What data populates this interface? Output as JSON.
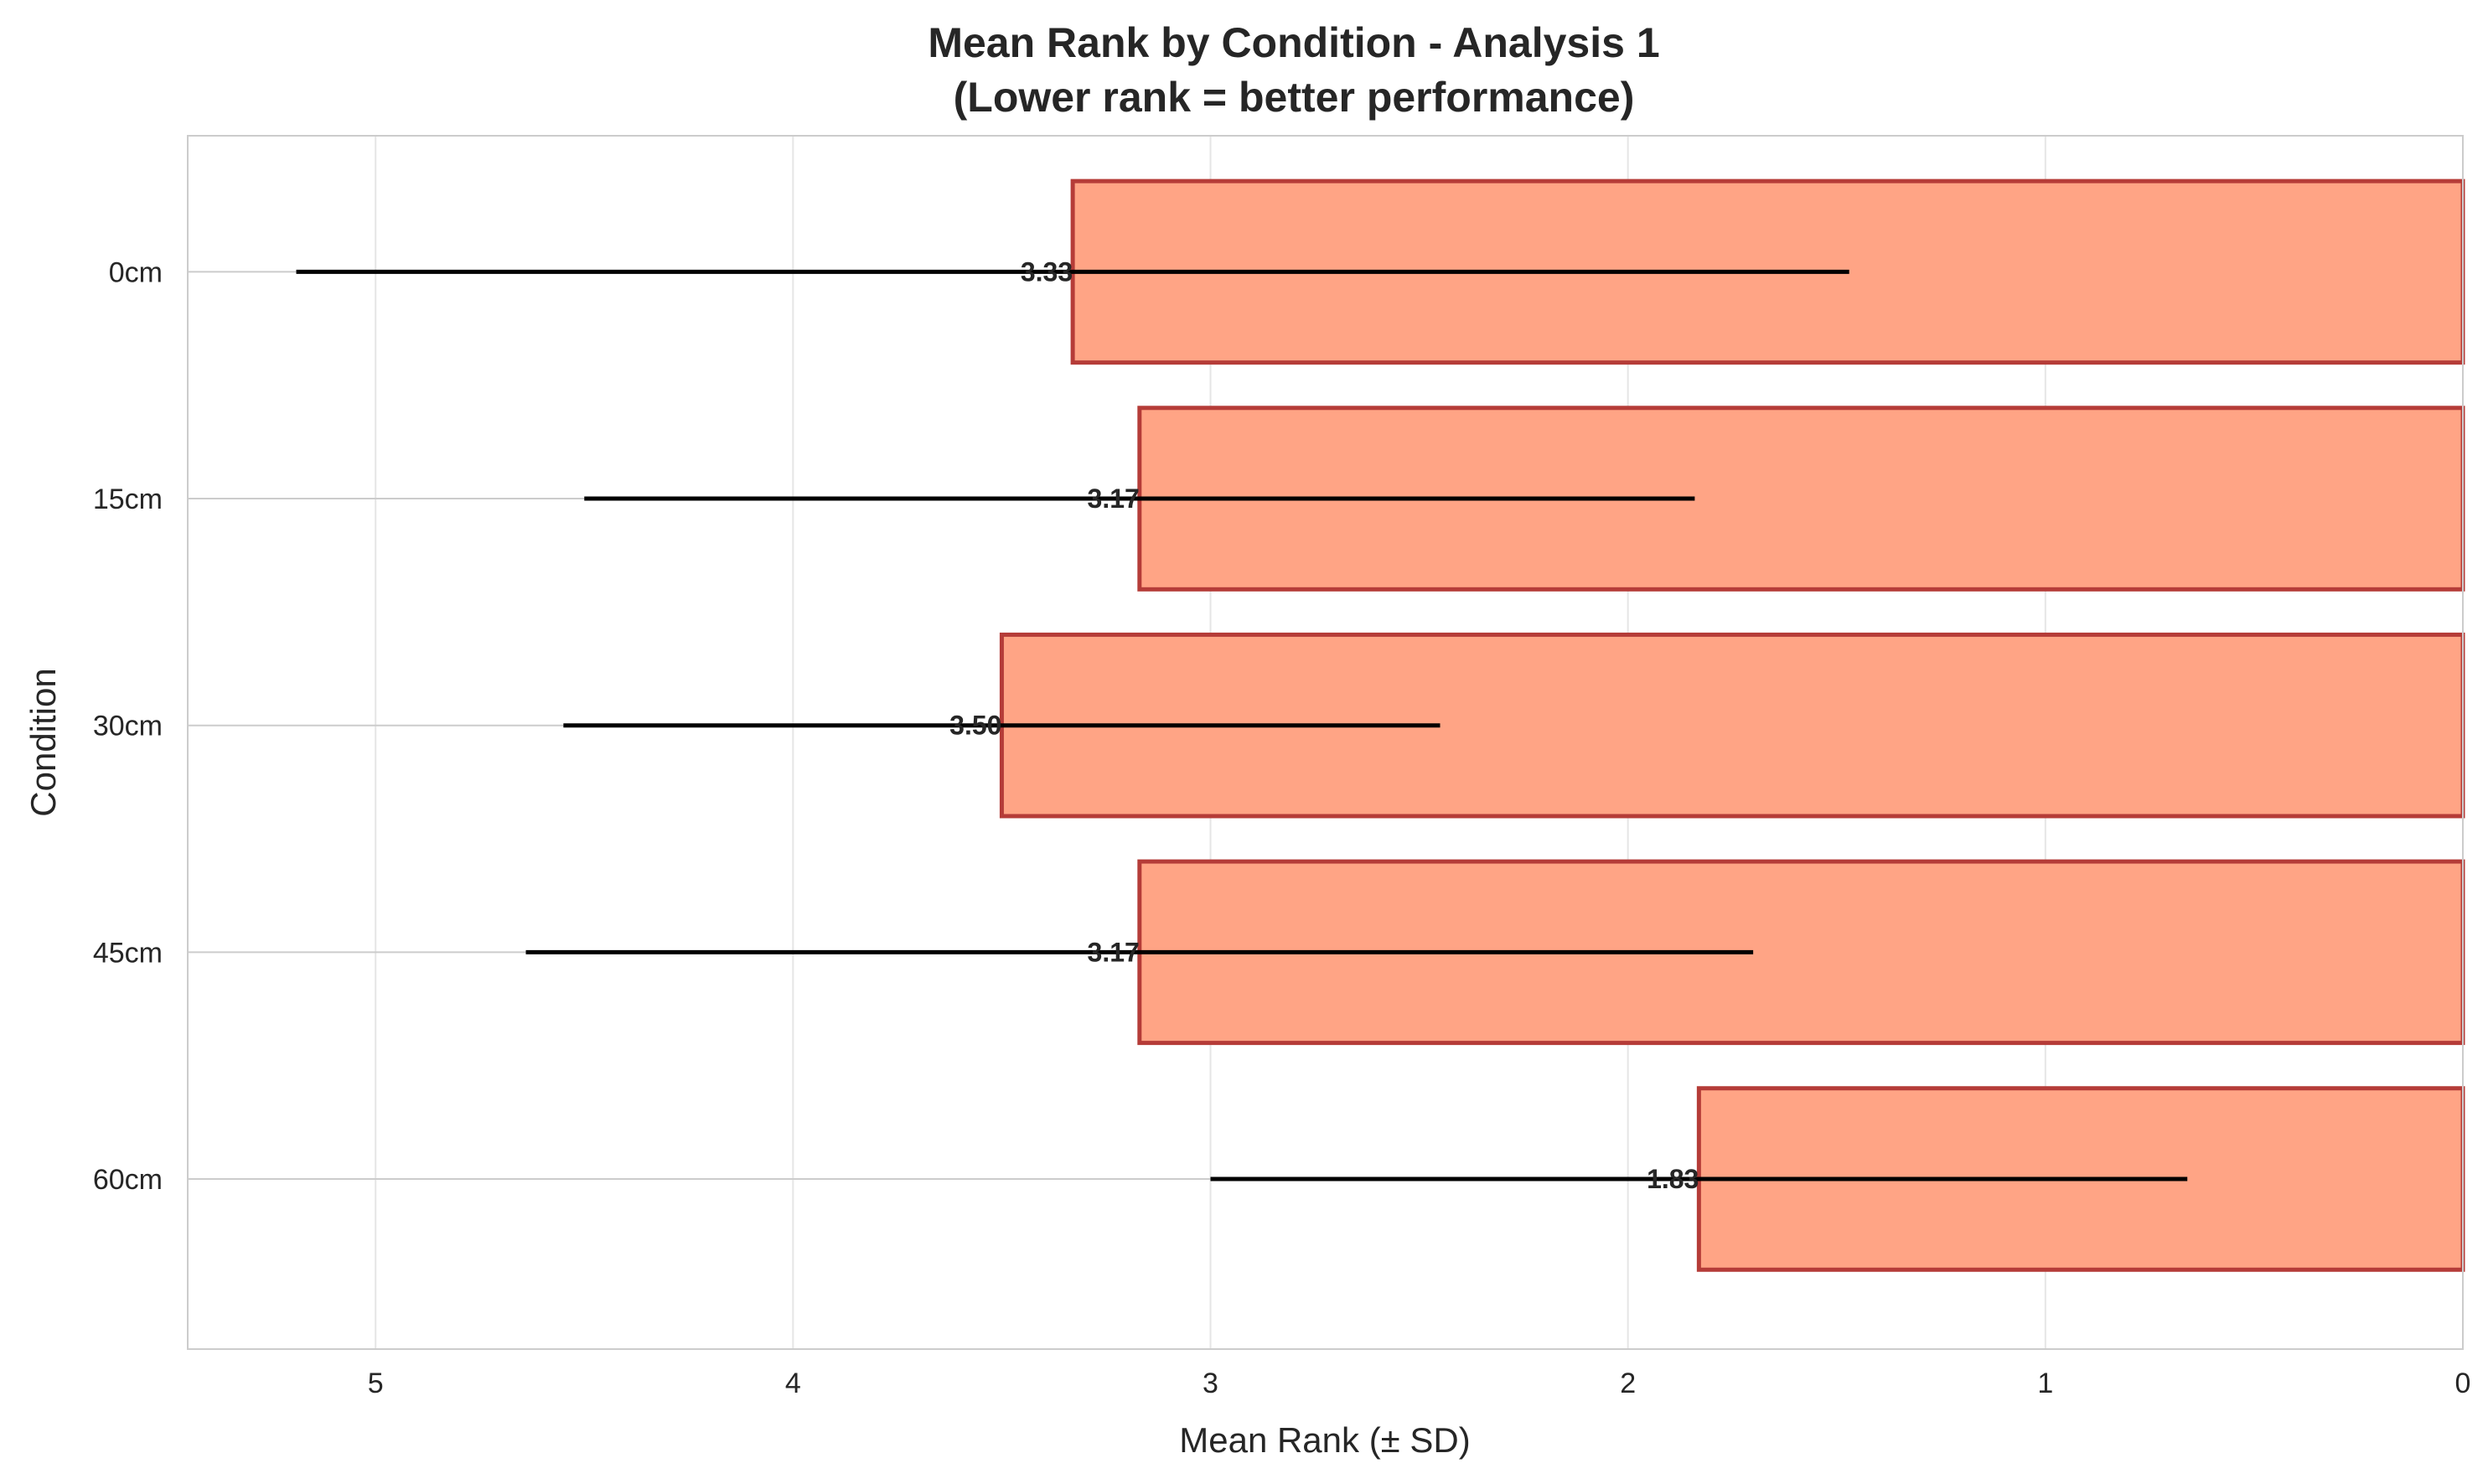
{
  "chart_data": {
    "type": "bar",
    "orientation": "horizontal",
    "title_line1": "Mean Rank by Condition - Analysis 1",
    "title_line2": "(Lower rank = better performance)",
    "xlabel": "Mean Rank (± SD)",
    "ylabel": "Condition",
    "xlim": [
      5.45,
      0
    ],
    "x_inverted": true,
    "xticks": [
      5,
      4,
      3,
      2,
      1,
      0
    ],
    "grid": true,
    "categories": [
      "0cm",
      "15cm",
      "30cm",
      "45cm",
      "60cm"
    ],
    "values": [
      3.33,
      3.17,
      3.5,
      3.17,
      1.83
    ],
    "value_labels": [
      "3.33",
      "3.17",
      "3.50",
      "3.17",
      "1.83"
    ],
    "error_sd": [
      1.86,
      1.33,
      1.05,
      1.47,
      1.17
    ],
    "colors": {
      "bar_fill": "#ffa485",
      "bar_edge": "#b53c38",
      "error_bar": "#000000",
      "grid": "#e6e6e6",
      "frame": "#cccccc"
    }
  }
}
